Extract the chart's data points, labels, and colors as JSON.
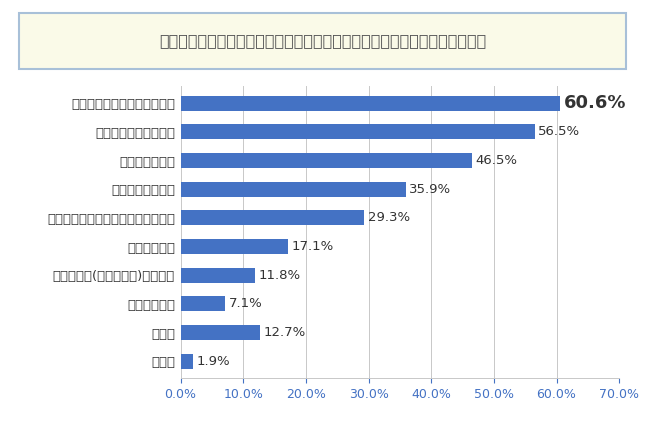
{
  "title": "代表制民主主義を機能させるためには何が必要だと思いますか【複数回答】",
  "categories": [
    "有権者の当事者としての意識",
    "政策軸に伴う政界再編",
    "選挙制度の改正",
    "一票の格差の是正",
    "マニフェストを軸とした政治の確立",
    "投票の義務化",
    "法定得票数(最低投票数)の厳密化",
    "政党法の成立",
    "その他",
    "無回答"
  ],
  "values": [
    60.6,
    56.5,
    46.5,
    35.9,
    29.3,
    17.1,
    11.8,
    7.1,
    12.7,
    1.9
  ],
  "bar_color": "#4472C4",
  "title_bg": "#FAFAE8",
  "title_border": "#A8C0D8",
  "background": "#FFFFFF",
  "grid_color": "#C8C8C8",
  "xlim": [
    0,
    70
  ],
  "xticks": [
    0,
    10,
    20,
    30,
    40,
    50,
    60,
    70
  ],
  "bar_height": 0.52,
  "label_fontsize": 9.5,
  "value_fontsize": 9.5,
  "title_fontsize": 11.5,
  "highlight_index": 0,
  "highlight_fontsize": 13,
  "xtick_fontsize": 9,
  "xtick_color": "#4472C4"
}
